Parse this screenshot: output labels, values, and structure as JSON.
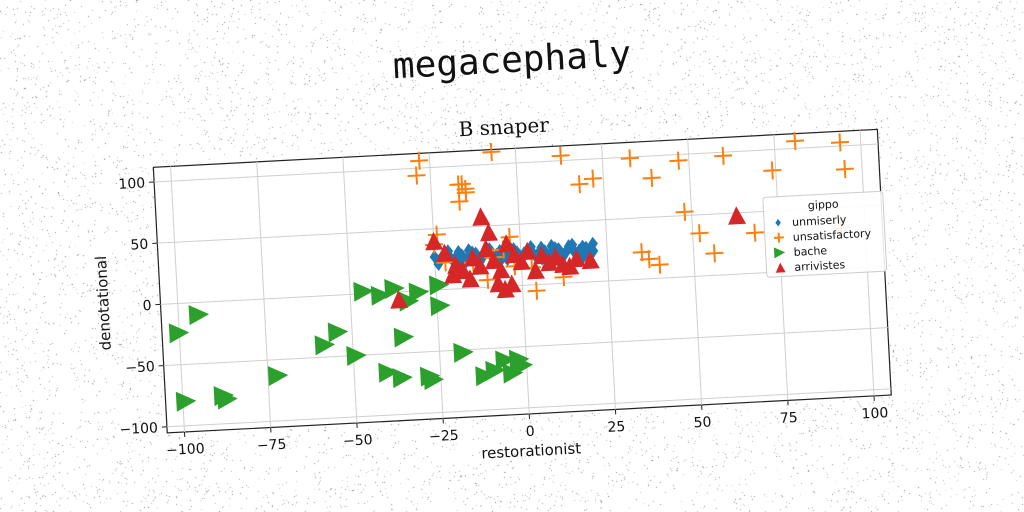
{
  "page": {
    "title": "megacephaly"
  },
  "chart_data": {
    "type": "scatter",
    "title": "B snaper",
    "xlabel": "restorationist",
    "ylabel": "denotational",
    "xlim": [
      -105,
      105
    ],
    "ylim": [
      -105,
      112
    ],
    "xticks": [
      -100,
      -75,
      -50,
      -25,
      0,
      25,
      50,
      75,
      100
    ],
    "yticks": [
      -100,
      -50,
      0,
      50,
      100
    ],
    "grid": true,
    "legend": {
      "title": "gippo",
      "placement": "right"
    },
    "colors": {
      "unmiserly": "#1f77b4",
      "unsatisfactory": "#ff7f0e",
      "bache": "#2ca02c",
      "arrivistes": "#d62728"
    },
    "series": [
      {
        "name": "unmiserly",
        "marker": "diamond",
        "x": [
          -25,
          -23,
          -21,
          -19,
          -17,
          -15,
          -13,
          -11,
          -9,
          -7,
          -5,
          -3,
          -1,
          1,
          3,
          5,
          7,
          9,
          11,
          13,
          15,
          17,
          19,
          21,
          -24,
          -20,
          -16,
          -12,
          -8,
          -4,
          0,
          4,
          8,
          12,
          16,
          20,
          -22,
          -18,
          -14,
          -10,
          -6,
          -2,
          2,
          6,
          10,
          14,
          18,
          -24,
          -18,
          -12,
          -6,
          0,
          6,
          12,
          18,
          -21,
          -15,
          -9,
          -3,
          3,
          9,
          15,
          21
        ],
        "y": [
          27,
          26,
          28,
          25,
          27,
          26,
          28,
          25,
          27,
          26,
          28,
          25,
          27,
          26,
          28,
          25,
          27,
          26,
          28,
          25,
          27,
          26,
          28,
          25,
          23,
          24,
          22,
          23,
          24,
          22,
          23,
          24,
          22,
          23,
          24,
          22,
          29,
          30,
          29,
          30,
          29,
          30,
          29,
          30,
          29,
          30,
          29,
          21,
          21,
          21,
          21,
          21,
          21,
          21,
          21,
          31,
          31,
          31,
          31,
          31,
          31,
          31,
          31
        ]
      },
      {
        "name": "unsatisfactory",
        "marker": "plus",
        "x": [
          -28,
          -29,
          -7,
          13,
          -17,
          -15,
          -15,
          -16,
          -17,
          -24,
          18,
          22,
          33,
          39,
          47,
          60,
          81,
          94,
          95,
          74,
          48,
          52,
          68,
          56,
          -25,
          -3,
          -5,
          35,
          37,
          -8,
          -14,
          40,
          -10,
          3,
          -22,
          12,
          -2,
          93,
          4
        ],
        "y": [
          106,
          94,
          110,
          104,
          71,
          78,
          81,
          85,
          85,
          45,
          80,
          84,
          99,
          82,
          95,
          97,
          106,
          103,
          81,
          83,
          53,
          35,
          33,
          18,
          37,
          40,
          30,
          22,
          16,
          24,
          21,
          11,
          6,
          14,
          22,
          5,
          16,
          33,
          -5
        ],
        "label_note": ""
      },
      {
        "name": "bache",
        "marker": "triangle-right",
        "x": [
          -94,
          -100,
          -99,
          -87,
          -88,
          -72,
          -58,
          -54,
          -49,
          -46,
          -41,
          -40,
          -37,
          -36,
          -35,
          -30,
          -28,
          -27,
          -24,
          -24,
          -18,
          -12,
          -9,
          -6,
          -4,
          -2,
          -1,
          -33
        ],
        "y": [
          -10,
          -24,
          -80,
          -80,
          -77,
          -63,
          -40,
          -30,
          -50,
          2,
          -2,
          -65,
          3,
          -70,
          -37,
          -1,
          -70,
          -73,
          -13,
          4,
          -52,
          -72,
          -68,
          -60,
          -71,
          -60,
          -65,
          -8
        ],
        "label_note": ""
      },
      {
        "name": "arrivistes",
        "marker": "triangle-up",
        "x": [
          -25,
          -22,
          -19,
          -17,
          -14,
          -12,
          -10,
          -8,
          -6,
          -4,
          -2,
          0,
          2,
          4,
          6,
          8,
          10,
          12,
          14,
          16,
          -15,
          -9,
          -7,
          -5,
          -3,
          -11,
          -20,
          -36,
          63,
          20
        ],
        "y": [
          40,
          30,
          20,
          15,
          25,
          18,
          32,
          22,
          14,
          35,
          26,
          20,
          28,
          12,
          24,
          18,
          22,
          16,
          14,
          20,
          8,
          45,
          3,
          -2,
          2,
          58,
          12,
          -6,
          48,
          18
        ]
      }
    ]
  }
}
